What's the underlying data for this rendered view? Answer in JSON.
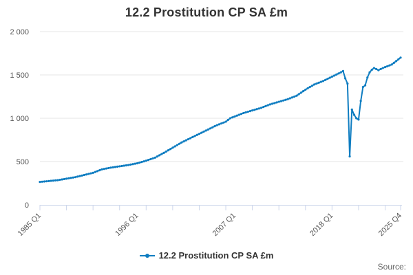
{
  "chart_data": {
    "type": "line",
    "title": "12.2 Prostitution CP SA £m",
    "ylim": [
      0,
      2000
    ],
    "yticks": [
      0,
      500,
      1000,
      1500,
      2000
    ],
    "ytick_labels": [
      "0",
      "500",
      "1 000",
      "1 500",
      "2 000"
    ],
    "xtick_labels": [
      "1985 Q1",
      "1996 Q1",
      "2007 Q1",
      "2018 Q1",
      "2025 Q4"
    ],
    "x_range": [
      "1985 Q1",
      "2025 Q4"
    ],
    "grid": true,
    "legend_position": "bottom",
    "series_color": "#0f7dc1",
    "series": [
      {
        "name": "12.2 Prostitution CP SA £m",
        "anchors": [
          [
            "1985 Q1",
            265
          ],
          [
            "1987 Q1",
            285
          ],
          [
            "1989 Q1",
            320
          ],
          [
            "1991 Q1",
            370
          ],
          [
            "1992 Q1",
            410
          ],
          [
            "1993 Q1",
            430
          ],
          [
            "1994 Q1",
            445
          ],
          [
            "1995 Q1",
            460
          ],
          [
            "1996 Q1",
            480
          ],
          [
            "1997 Q1",
            510
          ],
          [
            "1998 Q1",
            545
          ],
          [
            "1999 Q1",
            600
          ],
          [
            "2000 Q1",
            660
          ],
          [
            "2001 Q1",
            720
          ],
          [
            "2002 Q1",
            770
          ],
          [
            "2003 Q1",
            820
          ],
          [
            "2004 Q1",
            870
          ],
          [
            "2005 Q1",
            920
          ],
          [
            "2006 Q1",
            960
          ],
          [
            "2006 Q3",
            1000
          ],
          [
            "2007 Q2",
            1030
          ],
          [
            "2008 Q1",
            1060
          ],
          [
            "2009 Q1",
            1090
          ],
          [
            "2010 Q1",
            1120
          ],
          [
            "2011 Q1",
            1160
          ],
          [
            "2012 Q1",
            1190
          ],
          [
            "2013 Q1",
            1220
          ],
          [
            "2014 Q1",
            1260
          ],
          [
            "2015 Q1",
            1330
          ],
          [
            "2016 Q1",
            1390
          ],
          [
            "2017 Q1",
            1430
          ],
          [
            "2018 Q1",
            1480
          ],
          [
            "2019 Q1",
            1530
          ],
          [
            "2019 Q2",
            1545
          ],
          [
            "2019 Q3",
            1460
          ],
          [
            "2019 Q4",
            1400
          ],
          [
            "2020 Q1",
            560
          ],
          [
            "2020 Q2",
            1100
          ],
          [
            "2020 Q3",
            1040
          ],
          [
            "2020 Q4",
            1000
          ],
          [
            "2021 Q1",
            985
          ],
          [
            "2021 Q2",
            1200
          ],
          [
            "2021 Q3",
            1360
          ],
          [
            "2021 Q4",
            1380
          ],
          [
            "2022 Q1",
            1470
          ],
          [
            "2022 Q2",
            1530
          ],
          [
            "2022 Q3",
            1560
          ],
          [
            "2022 Q4",
            1580
          ],
          [
            "2023 Q2",
            1555
          ],
          [
            "2023 Q4",
            1580
          ],
          [
            "2024 Q2",
            1600
          ],
          [
            "2024 Q4",
            1620
          ],
          [
            "2025 Q2",
            1660
          ],
          [
            "2025 Q4",
            1700
          ]
        ]
      }
    ]
  },
  "legend": {
    "label": "12.2 Prostitution CP SA £m"
  },
  "footer": {
    "source_label": "Source:"
  }
}
